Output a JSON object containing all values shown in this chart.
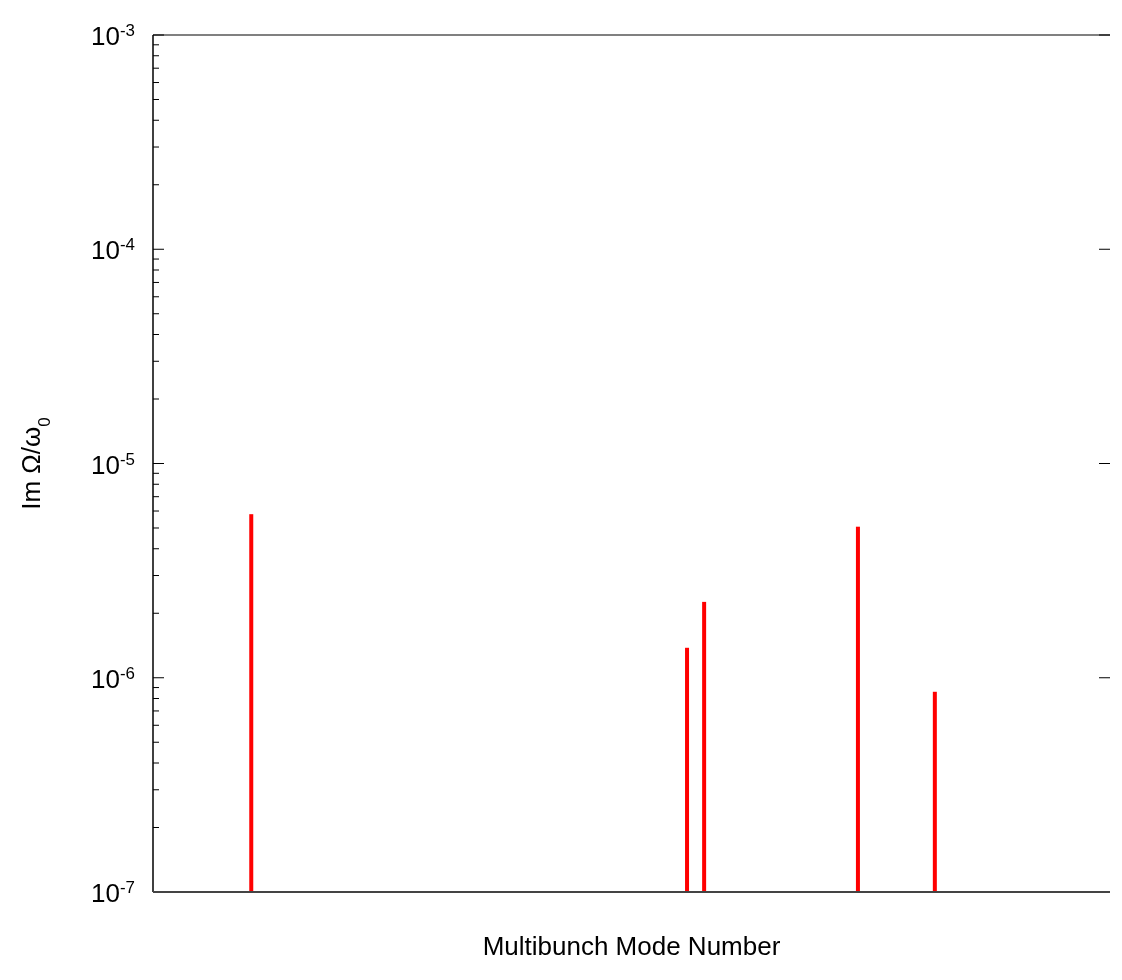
{
  "chart_data": {
    "type": "bar",
    "xlabel": "Multibunch Mode Number",
    "ylabel": "Im Ω/ω$_{0}$",
    "log": true,
    "tick_labels": "y",
    "grid": false,
    "categories": [
      null,
      null,
      null,
      null,
      null,
      null,
      null,
      null,
      null,
      null,
      null,
      null,
      null,
      null,
      null,
      null,
      null,
      null,
      null,
      null,
      null,
      null,
      null,
      null,
      null,
      null,
      null,
      null,
      null,
      null,
      null,
      null,
      null,
      null,
      null,
      null,
      null,
      null,
      null,
      null,
      null,
      null,
      null,
      null,
      null,
      null,
      null,
      null,
      null,
      null,
      null,
      null,
      null,
      null,
      null,
      null,
      null,
      null,
      null,
      null,
      null,
      null,
      null,
      null,
      null,
      null,
      null,
      null,
      null,
      null,
      null,
      null,
      null,
      null,
      null,
      null,
      null,
      null,
      null,
      null,
      null,
      null,
      null,
      null,
      null,
      null,
      null,
      null,
      null,
      null,
      null,
      null,
      null,
      null,
      null,
      null,
      null,
      null,
      null,
      null,
      null,
      null,
      null,
      null,
      null,
      null,
      null,
      null,
      null,
      null,
      null,
      null
    ],
    "values": [
      null,
      null,
      null,
      null,
      null,
      null,
      null,
      null,
      null,
      null,
      null,
      5.8e-06,
      null,
      null,
      null,
      null,
      null,
      null,
      null,
      null,
      null,
      null,
      null,
      null,
      null,
      null,
      null,
      null,
      null,
      null,
      null,
      null,
      null,
      null,
      null,
      null,
      null,
      null,
      null,
      null,
      null,
      null,
      null,
      null,
      null,
      null,
      null,
      null,
      null,
      null,
      null,
      null,
      null,
      null,
      null,
      null,
      null,
      null,
      null,
      null,
      null,
      null,
      1.38e-06,
      null,
      2.26e-06,
      null,
      null,
      null,
      null,
      null,
      null,
      null,
      null,
      null,
      null,
      null,
      null,
      null,
      null,
      null,
      null,
      null,
      5.07e-06,
      null,
      null,
      null,
      null,
      null,
      null,
      null,
      null,
      8.6e-07,
      null,
      null,
      null,
      null,
      null,
      null,
      null,
      null,
      null,
      null,
      null,
      null,
      null,
      null,
      null,
      null,
      null,
      null,
      null,
      null
    ],
    "color": "#ff0000",
    "ylim": [
      1e-07,
      0.001
    ],
    "yticks": [
      {
        "value": 1e-07,
        "label": "10$^{-7}$"
      },
      {
        "value": 2e-07,
        "label": null
      },
      {
        "value": 3e-07,
        "label": null
      },
      {
        "value": 4e-07,
        "label": null
      },
      {
        "value": 5e-07,
        "label": null
      },
      {
        "value": 6e-07,
        "label": null
      },
      {
        "value": 7e-07,
        "label": null
      },
      {
        "value": 8e-07,
        "label": null
      },
      {
        "value": 9e-07,
        "label": null
      },
      {
        "value": 1e-06,
        "label": "10$^{-6}$"
      },
      {
        "value": 2e-06,
        "label": null
      },
      {
        "value": 3e-06,
        "label": null
      },
      {
        "value": 4e-06,
        "label": null
      },
      {
        "value": 5e-06,
        "label": null
      },
      {
        "value": 6e-06,
        "label": null
      },
      {
        "value": 7e-06,
        "label": null
      },
      {
        "value": 8e-06,
        "label": null
      },
      {
        "value": 9e-06,
        "label": null
      },
      {
        "value": 1e-05,
        "label": "10$^{-5}$"
      },
      {
        "value": 2e-05,
        "label": null
      },
      {
        "value": 3e-05,
        "label": null
      },
      {
        "value": 4e-05,
        "label": null
      },
      {
        "value": 5e-05,
        "label": null
      },
      {
        "value": 6e-05,
        "label": null
      },
      {
        "value": 7e-05,
        "label": null
      },
      {
        "value": 8e-05,
        "label": null
      },
      {
        "value": 9e-05,
        "label": null
      },
      {
        "value": 0.0001,
        "label": "10$^{-4}$"
      },
      {
        "value": 0.0002,
        "label": null
      },
      {
        "value": 0.0003,
        "label": null
      },
      {
        "value": 0.0004,
        "label": null
      },
      {
        "value": 0.0005,
        "label": null
      },
      {
        "value": 0.0006,
        "label": null
      },
      {
        "value": 0.0007,
        "label": null
      },
      {
        "value": 0.0008,
        "label": null
      },
      {
        "value": 0.0009,
        "label": null
      },
      {
        "value": 0.001,
        "label": "10$^{-3}$"
      }
    ]
  }
}
